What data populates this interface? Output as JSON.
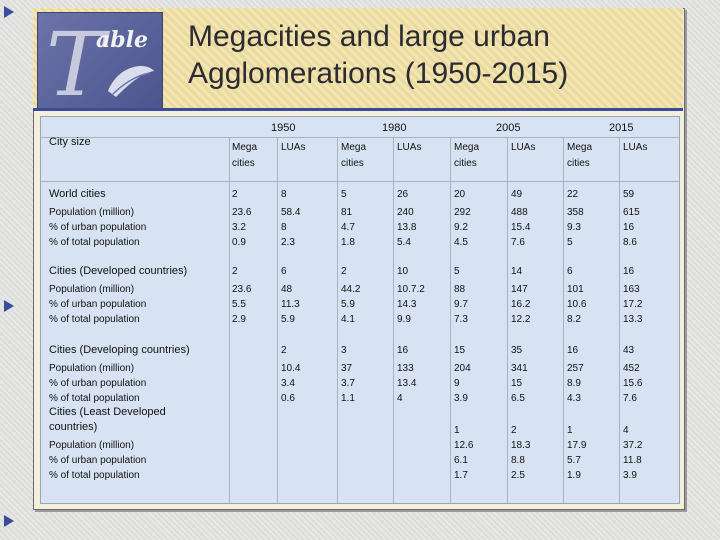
{
  "logo": {
    "word": "able"
  },
  "title": {
    "line1": "Megacities and large urban",
    "line2": "Agglomerations (1950-2015)"
  },
  "header": {
    "years": [
      "1950",
      "1980",
      "2005",
      "2015"
    ],
    "city_size": "City size",
    "sub": [
      "Mega cities",
      "LUAs",
      "Mega cities",
      "LUAs",
      "Mega cities",
      "LUAs",
      "Mega cities",
      "LUAs"
    ]
  },
  "groups": [
    {
      "label": "World cities",
      "count": [
        "2",
        "8",
        "5",
        "26",
        "20",
        "49",
        "22",
        "59"
      ],
      "metric_labels": [
        "Population (million)",
        "% of urban population",
        "% of total population"
      ],
      "metrics": [
        [
          "23.6",
          "3.2",
          "0.9"
        ],
        [
          "58.4",
          "8",
          "2.3"
        ],
        [
          "81",
          "4.7",
          "1.8"
        ],
        [
          "240",
          "13.8",
          "5.4"
        ],
        [
          "292",
          "9.2",
          "4.5"
        ],
        [
          "488",
          "15.4",
          "7.6"
        ],
        [
          "358",
          "9.3",
          "5"
        ],
        [
          "615",
          "16",
          "8.6"
        ]
      ]
    },
    {
      "label": "Cities (Developed countries)",
      "count": [
        "2",
        "6",
        "2",
        "10",
        "5",
        "14",
        "6",
        "16"
      ],
      "metric_labels": [
        "Population (million)",
        "% of urban population",
        "% of total population"
      ],
      "metrics": [
        [
          "23.6",
          "5.5",
          "2.9"
        ],
        [
          "48",
          "11.3",
          "5.9"
        ],
        [
          "44.2",
          "5.9",
          "4.1"
        ],
        [
          "10.7.2",
          "14.3",
          "9.9"
        ],
        [
          "88",
          "9.7",
          "7.3"
        ],
        [
          "147",
          "16.2",
          "12.2"
        ],
        [
          "101",
          "10.6",
          "8.2"
        ],
        [
          "163",
          "17.2",
          "13.3"
        ]
      ]
    },
    {
      "label": "Cities (Developing countries)",
      "count": [
        "",
        "2",
        "3",
        "16",
        "15",
        "35",
        "16",
        "43"
      ],
      "metric_labels": [
        "Population (million)",
        "% of urban population",
        "% of total population"
      ],
      "metrics": [
        [
          "",
          "",
          ""
        ],
        [
          "10.4",
          "3.4",
          "0.6"
        ],
        [
          "37",
          "3.7",
          "1.1"
        ],
        [
          "133",
          "13.4",
          "4"
        ],
        [
          "204",
          "9",
          "3.9"
        ],
        [
          "341",
          "15",
          "6.5"
        ],
        [
          "257",
          "8.9",
          "4.3"
        ],
        [
          "452",
          "15.6",
          "7.6"
        ]
      ]
    },
    {
      "label": "Cities (Least Developed countries)",
      "count": [
        "",
        "",
        "",
        "",
        "1",
        "2",
        "1",
        "4"
      ],
      "metric_labels": [
        "Population (million)",
        "% of urban population",
        "% of total population"
      ],
      "metrics": [
        [
          "",
          "",
          ""
        ],
        [
          "",
          "",
          ""
        ],
        [
          "",
          "",
          ""
        ],
        [
          "",
          "",
          ""
        ],
        [
          "12.6",
          "6.1",
          "1.7"
        ],
        [
          "18.3",
          "8.8",
          "2.5"
        ],
        [
          "17.9",
          "5.7",
          "1.9"
        ],
        [
          "37.2",
          "11.8",
          "3.9"
        ]
      ]
    }
  ]
}
